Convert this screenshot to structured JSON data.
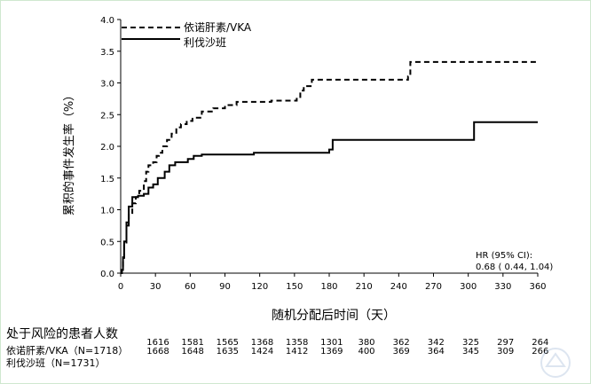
{
  "chart_data": {
    "type": "line",
    "xlabel": "随机分配后时间（天）",
    "ylabel": "累积的事件发生率（%）",
    "xlim": [
      0,
      360
    ],
    "ylim": [
      0,
      4.0
    ],
    "x_ticks": [
      0,
      30,
      60,
      90,
      120,
      150,
      180,
      210,
      240,
      270,
      300,
      330,
      360
    ],
    "y_ticks": [
      "0.0",
      "0.5",
      "1.0",
      "1.5",
      "2.0",
      "2.5",
      "3.0",
      "3.5",
      "4.0"
    ],
    "grid": false,
    "legend_position": "top-right",
    "series": [
      {
        "name": "依诺肝素/VKA",
        "style": "dashed",
        "color": "#000000",
        "points": [
          [
            0,
            0
          ],
          [
            1,
            0.05
          ],
          [
            2,
            0.2
          ],
          [
            3,
            0.45
          ],
          [
            5,
            0.75
          ],
          [
            7,
            0.95
          ],
          [
            10,
            1.1
          ],
          [
            13,
            1.2
          ],
          [
            16,
            1.3
          ],
          [
            20,
            1.45
          ],
          [
            22,
            1.6
          ],
          [
            24,
            1.7
          ],
          [
            28,
            1.75
          ],
          [
            31,
            1.85
          ],
          [
            33,
            1.9
          ],
          [
            36,
            2.0
          ],
          [
            40,
            2.1
          ],
          [
            44,
            2.2
          ],
          [
            48,
            2.3
          ],
          [
            52,
            2.35
          ],
          [
            57,
            2.4
          ],
          [
            62,
            2.45
          ],
          [
            70,
            2.55
          ],
          [
            80,
            2.6
          ],
          [
            90,
            2.65
          ],
          [
            100,
            2.7
          ],
          [
            130,
            2.72
          ],
          [
            152,
            2.75
          ],
          [
            155,
            2.88
          ],
          [
            158,
            2.95
          ],
          [
            165,
            3.05
          ],
          [
            248,
            3.1
          ],
          [
            250,
            3.33
          ],
          [
            360,
            3.33
          ]
        ]
      },
      {
        "name": "利伐沙班",
        "style": "solid",
        "color": "#000000",
        "points": [
          [
            0,
            0
          ],
          [
            1,
            0.05
          ],
          [
            2,
            0.25
          ],
          [
            3,
            0.5
          ],
          [
            5,
            0.8
          ],
          [
            7,
            1.05
          ],
          [
            10,
            1.2
          ],
          [
            15,
            1.22
          ],
          [
            20,
            1.25
          ],
          [
            24,
            1.35
          ],
          [
            28,
            1.4
          ],
          [
            32,
            1.5
          ],
          [
            38,
            1.6
          ],
          [
            42,
            1.7
          ],
          [
            47,
            1.75
          ],
          [
            58,
            1.8
          ],
          [
            63,
            1.85
          ],
          [
            70,
            1.87
          ],
          [
            115,
            1.9
          ],
          [
            180,
            1.95
          ],
          [
            183,
            2.1
          ],
          [
            300,
            2.1
          ],
          [
            305,
            2.38
          ],
          [
            360,
            2.38
          ]
        ]
      }
    ],
    "annotation": {
      "line1": "HR (95% CI):",
      "line2": "0.68 ( 0.44,  1.04)"
    }
  },
  "risk_table": {
    "title": "处于风险的患者人数",
    "time_points": [
      0,
      30,
      60,
      90,
      120,
      150,
      180,
      210,
      240,
      270,
      300,
      330
    ],
    "rows": [
      {
        "label": "依诺肝素/VKA（N=1718）",
        "values": [
          "1616",
          "1581",
          "1565",
          "1368",
          "1358",
          "1301",
          "380",
          "362",
          "342",
          "325",
          "297",
          "264"
        ]
      },
      {
        "label": "利伐沙班（N=1731）",
        "values": [
          "1668",
          "1648",
          "1635",
          "1424",
          "1412",
          "1369",
          "400",
          "369",
          "364",
          "345",
          "309",
          "266"
        ]
      }
    ]
  }
}
